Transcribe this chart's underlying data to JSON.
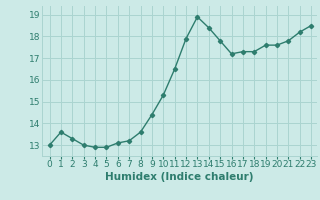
{
  "x": [
    0,
    1,
    2,
    3,
    4,
    5,
    6,
    7,
    8,
    9,
    10,
    11,
    12,
    13,
    14,
    15,
    16,
    17,
    18,
    19,
    20,
    21,
    22,
    23
  ],
  "y": [
    13.0,
    13.6,
    13.3,
    13.0,
    12.9,
    12.9,
    13.1,
    13.2,
    13.6,
    14.4,
    15.3,
    16.5,
    17.9,
    18.9,
    18.4,
    17.8,
    17.2,
    17.3,
    17.3,
    17.6,
    17.6,
    17.8,
    18.2,
    18.5
  ],
  "line_color": "#2e7d6e",
  "marker": "D",
  "markersize": 2.2,
  "linewidth": 1.0,
  "bg_color": "#cceae7",
  "grid_color": "#aad4d0",
  "xlabel": "Humidex (Indice chaleur)",
  "xlabel_fontsize": 7.5,
  "tick_fontsize": 6.5,
  "ylim": [
    12.5,
    19.4
  ],
  "yticks": [
    13,
    14,
    15,
    16,
    17,
    18,
    19
  ],
  "xtick_labels": [
    "0",
    "1",
    "2",
    "3",
    "4",
    "5",
    "6",
    "7",
    "8",
    "9",
    "10",
    "11",
    "12",
    "13",
    "14",
    "15",
    "16",
    "17",
    "18",
    "19",
    "20",
    "21",
    "22",
    "23"
  ]
}
